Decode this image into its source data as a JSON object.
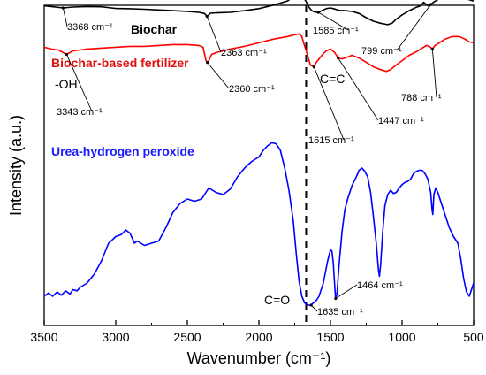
{
  "chart_data": {
    "type": "line",
    "xlabel": "Wavenumber (cm⁻¹)",
    "ylabel": "Intensity (a.u.)",
    "xlim": [
      3500,
      500
    ],
    "x_reversed": true,
    "x_ticks": [
      3500,
      3000,
      2500,
      2000,
      1500,
      1000,
      500
    ],
    "y_ticks_shown": false,
    "grid": false,
    "legend": "none",
    "dashed_reference_x": 1670,
    "series": [
      {
        "name": "Biochar",
        "color": "#000000",
        "label_color": "#000000",
        "points": [
          [
            3500,
            0.895
          ],
          [
            3450,
            0.89
          ],
          [
            3368,
            0.88
          ],
          [
            3300,
            0.886
          ],
          [
            3200,
            0.89
          ],
          [
            3100,
            0.888
          ],
          [
            3000,
            0.876
          ],
          [
            2900,
            0.874
          ],
          [
            2800,
            0.87
          ],
          [
            2700,
            0.865
          ],
          [
            2600,
            0.86
          ],
          [
            2500,
            0.855
          ],
          [
            2420,
            0.848
          ],
          [
            2380,
            0.84
          ],
          [
            2363,
            0.82
          ],
          [
            2350,
            0.83
          ],
          [
            2340,
            0.842
          ],
          [
            2300,
            0.844
          ],
          [
            2200,
            0.848
          ],
          [
            2100,
            0.86
          ],
          [
            2000,
            0.875
          ],
          [
            1900,
            0.9
          ],
          [
            1800,
            0.93
          ],
          [
            1760,
            0.96
          ],
          [
            1720,
            0.965
          ],
          [
            1690,
            0.955
          ],
          [
            1670,
            0.925
          ],
          [
            1650,
            0.885
          ],
          [
            1630,
            0.86
          ],
          [
            1610,
            0.85
          ],
          [
            1585,
            0.848
          ],
          [
            1560,
            0.86
          ],
          [
            1530,
            0.875
          ],
          [
            1500,
            0.88
          ],
          [
            1470,
            0.872
          ],
          [
            1440,
            0.862
          ],
          [
            1400,
            0.86
          ],
          [
            1350,
            0.855
          ],
          [
            1300,
            0.84
          ],
          [
            1250,
            0.81
          ],
          [
            1200,
            0.785
          ],
          [
            1150,
            0.77
          ],
          [
            1100,
            0.76
          ],
          [
            1070,
            0.77
          ],
          [
            1040,
            0.8
          ],
          [
            1000,
            0.83
          ],
          [
            950,
            0.86
          ],
          [
            900,
            0.885
          ],
          [
            870,
            0.895
          ],
          [
            850,
            0.92
          ],
          [
            830,
            0.905
          ],
          [
            810,
            0.89
          ],
          [
            799,
            0.905
          ],
          [
            780,
            0.92
          ],
          [
            750,
            0.94
          ],
          [
            700,
            0.96
          ],
          [
            650,
            0.97
          ],
          [
            600,
            0.965
          ],
          [
            570,
            0.955
          ],
          [
            550,
            0.945
          ],
          [
            520,
            0.935
          ],
          [
            500,
            0.93
          ]
        ]
      },
      {
        "name": "Biochar-based fertilizer",
        "color": "#ff0000",
        "label_color": "#e01010",
        "points": [
          [
            3500,
            0.785
          ],
          [
            3450,
            0.775
          ],
          [
            3400,
            0.77
          ],
          [
            3343,
            0.745
          ],
          [
            3300,
            0.765
          ],
          [
            3250,
            0.77
          ],
          [
            3200,
            0.775
          ],
          [
            3100,
            0.78
          ],
          [
            3000,
            0.785
          ],
          [
            2900,
            0.79
          ],
          [
            2800,
            0.79
          ],
          [
            2700,
            0.795
          ],
          [
            2600,
            0.8
          ],
          [
            2500,
            0.8
          ],
          [
            2420,
            0.795
          ],
          [
            2390,
            0.785
          ],
          [
            2370,
            0.71
          ],
          [
            2360,
            0.7
          ],
          [
            2350,
            0.71
          ],
          [
            2330,
            0.745
          ],
          [
            2300,
            0.755
          ],
          [
            2200,
            0.775
          ],
          [
            2100,
            0.79
          ],
          [
            2000,
            0.81
          ],
          [
            1900,
            0.83
          ],
          [
            1800,
            0.845
          ],
          [
            1750,
            0.855
          ],
          [
            1720,
            0.86
          ],
          [
            1700,
            0.845
          ],
          [
            1680,
            0.79
          ],
          [
            1660,
            0.74
          ],
          [
            1640,
            0.685
          ],
          [
            1615,
            0.675
          ],
          [
            1600,
            0.7
          ],
          [
            1580,
            0.72
          ],
          [
            1560,
            0.74
          ],
          [
            1530,
            0.765
          ],
          [
            1500,
            0.775
          ],
          [
            1470,
            0.755
          ],
          [
            1447,
            0.725
          ],
          [
            1420,
            0.72
          ],
          [
            1380,
            0.73
          ],
          [
            1350,
            0.74
          ],
          [
            1300,
            0.725
          ],
          [
            1250,
            0.7
          ],
          [
            1200,
            0.675
          ],
          [
            1150,
            0.66
          ],
          [
            1110,
            0.65
          ],
          [
            1080,
            0.66
          ],
          [
            1050,
            0.68
          ],
          [
            1000,
            0.71
          ],
          [
            950,
            0.74
          ],
          [
            900,
            0.76
          ],
          [
            860,
            0.78
          ],
          [
            830,
            0.795
          ],
          [
            810,
            0.79
          ],
          [
            788,
            0.775
          ],
          [
            770,
            0.795
          ],
          [
            740,
            0.81
          ],
          [
            700,
            0.83
          ],
          [
            650,
            0.845
          ],
          [
            600,
            0.845
          ],
          [
            560,
            0.83
          ],
          [
            530,
            0.815
          ],
          [
            500,
            0.81
          ]
        ]
      },
      {
        "name": "Urea-hydrogen peroxide",
        "color": "#0000ff",
        "label_color": "#1a1aff",
        "points": [
          [
            3500,
            0.06
          ],
          [
            3470,
            0.075
          ],
          [
            3440,
            0.06
          ],
          [
            3410,
            0.08
          ],
          [
            3380,
            0.065
          ],
          [
            3350,
            0.085
          ],
          [
            3320,
            0.07
          ],
          [
            3300,
            0.09
          ],
          [
            3270,
            0.085
          ],
          [
            3250,
            0.1
          ],
          [
            3200,
            0.12
          ],
          [
            3150,
            0.16
          ],
          [
            3100,
            0.22
          ],
          [
            3050,
            0.3
          ],
          [
            3000,
            0.33
          ],
          [
            2960,
            0.34
          ],
          [
            2930,
            0.36
          ],
          [
            2900,
            0.345
          ],
          [
            2870,
            0.3
          ],
          [
            2850,
            0.31
          ],
          [
            2800,
            0.29
          ],
          [
            2750,
            0.3
          ],
          [
            2700,
            0.31
          ],
          [
            2650,
            0.37
          ],
          [
            2600,
            0.44
          ],
          [
            2550,
            0.48
          ],
          [
            2500,
            0.5
          ],
          [
            2450,
            0.49
          ],
          [
            2400,
            0.5
          ],
          [
            2350,
            0.55
          ],
          [
            2300,
            0.53
          ],
          [
            2250,
            0.52
          ],
          [
            2200,
            0.545
          ],
          [
            2150,
            0.6
          ],
          [
            2100,
            0.64
          ],
          [
            2050,
            0.67
          ],
          [
            2000,
            0.69
          ],
          [
            1970,
            0.72
          ],
          [
            1940,
            0.74
          ],
          [
            1910,
            0.755
          ],
          [
            1880,
            0.75
          ],
          [
            1850,
            0.72
          ],
          [
            1820,
            0.64
          ],
          [
            1790,
            0.54
          ],
          [
            1760,
            0.4
          ],
          [
            1740,
            0.26
          ],
          [
            1720,
            0.13
          ],
          [
            1700,
            0.06
          ],
          [
            1680,
            0.03
          ],
          [
            1660,
            0.02
          ],
          [
            1650,
            0.02
          ],
          [
            1635,
            0.02
          ],
          [
            1620,
            0.03
          ],
          [
            1600,
            0.04
          ],
          [
            1580,
            0.06
          ],
          [
            1550,
            0.12
          ],
          [
            1520,
            0.22
          ],
          [
            1500,
            0.27
          ],
          [
            1490,
            0.265
          ],
          [
            1480,
            0.21
          ],
          [
            1470,
            0.1
          ],
          [
            1464,
            0.05
          ],
          [
            1455,
            0.07
          ],
          [
            1440,
            0.2
          ],
          [
            1420,
            0.35
          ],
          [
            1400,
            0.45
          ],
          [
            1380,
            0.5
          ],
          [
            1350,
            0.56
          ],
          [
            1320,
            0.6
          ],
          [
            1300,
            0.63
          ],
          [
            1280,
            0.64
          ],
          [
            1260,
            0.625
          ],
          [
            1240,
            0.6
          ],
          [
            1220,
            0.53
          ],
          [
            1200,
            0.42
          ],
          [
            1180,
            0.3
          ],
          [
            1165,
            0.18
          ],
          [
            1158,
            0.15
          ],
          [
            1150,
            0.2
          ],
          [
            1135,
            0.35
          ],
          [
            1120,
            0.47
          ],
          [
            1100,
            0.52
          ],
          [
            1080,
            0.54
          ],
          [
            1060,
            0.525
          ],
          [
            1040,
            0.53
          ],
          [
            1020,
            0.55
          ],
          [
            1000,
            0.565
          ],
          [
            980,
            0.575
          ],
          [
            960,
            0.58
          ],
          [
            940,
            0.59
          ],
          [
            920,
            0.615
          ],
          [
            900,
            0.625
          ],
          [
            880,
            0.63
          ],
          [
            860,
            0.63
          ],
          [
            840,
            0.615
          ],
          [
            820,
            0.59
          ],
          [
            800,
            0.53
          ],
          [
            790,
            0.45
          ],
          [
            785,
            0.43
          ],
          [
            778,
            0.52
          ],
          [
            765,
            0.55
          ],
          [
            750,
            0.53
          ],
          [
            730,
            0.49
          ],
          [
            700,
            0.43
          ],
          [
            670,
            0.37
          ],
          [
            640,
            0.33
          ],
          [
            610,
            0.3
          ],
          [
            590,
            0.23
          ],
          [
            570,
            0.14
          ],
          [
            550,
            0.08
          ],
          [
            530,
            0.06
          ],
          [
            510,
            0.1
          ],
          [
            500,
            0.12
          ]
        ]
      }
    ],
    "annotations": [
      {
        "text": "3368 cm⁻¹",
        "series": 0,
        "x": 3368
      },
      {
        "text": "2363 cm⁻¹",
        "series": 0,
        "x": 2363
      },
      {
        "text": "1585 cm⁻¹",
        "series": 0,
        "x": 1585
      },
      {
        "text": "799 cm⁻¹",
        "series": 0,
        "x": 799
      },
      {
        "text": "-OH",
        "series": 1,
        "x": 3343
      },
      {
        "text": "3343 cm⁻¹",
        "series": 1,
        "x": 3343
      },
      {
        "text": "2360 cm⁻¹",
        "series": 1,
        "x": 2360
      },
      {
        "text": "C=C",
        "series": 1,
        "x": 1447
      },
      {
        "text": "1447 cm⁻¹",
        "series": 1,
        "x": 1447
      },
      {
        "text": "1615 cm⁻¹",
        "series": 1,
        "x": 1615
      },
      {
        "text": "788 cm⁻¹",
        "series": 1,
        "x": 788
      },
      {
        "text": "1464 cm⁻¹",
        "series": 2,
        "x": 1464
      },
      {
        "text": "C=O",
        "series": 2,
        "x": 1635
      },
      {
        "text": "1635 cm⁻¹",
        "series": 2,
        "x": 1635
      }
    ]
  }
}
